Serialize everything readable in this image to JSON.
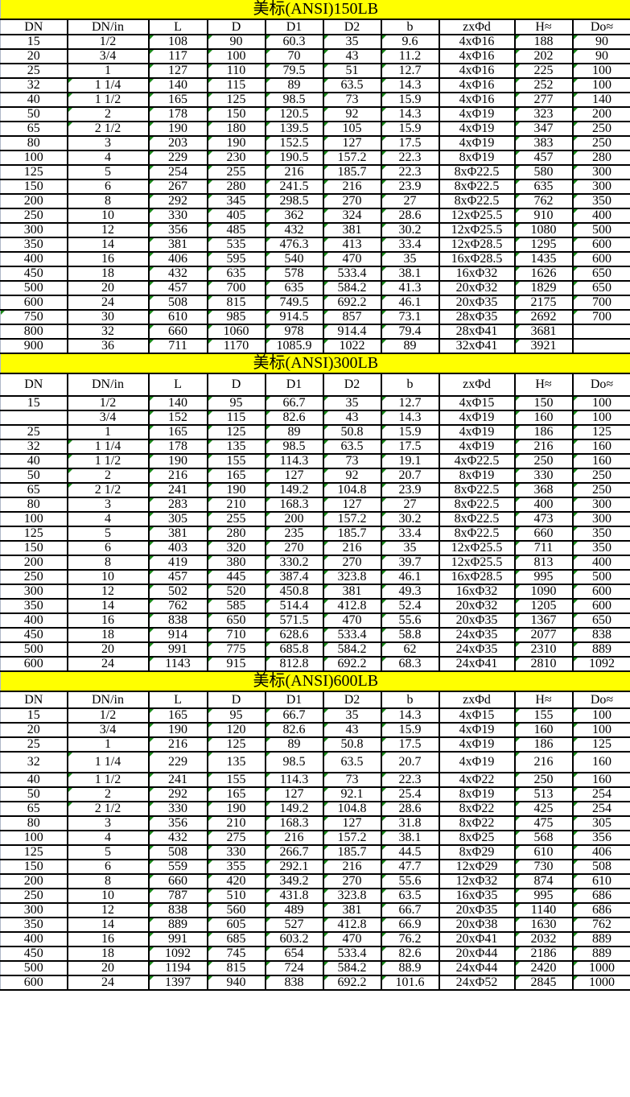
{
  "columns": [
    "DN",
    "DN/in",
    "L",
    "D",
    "D1",
    "D2",
    "b",
    "zxΦd",
    "H≈",
    "Do≈"
  ],
  "tables": [
    {
      "title": "美标(ANSI)150LB",
      "rows": [
        [
          "15",
          "1/2",
          "108",
          "90",
          "60.3",
          "35",
          "9.6",
          "4xΦ16",
          "188",
          "90"
        ],
        [
          "20",
          "3/4",
          "117",
          "100",
          "70",
          "43",
          "11.2",
          "4xΦ16",
          "202",
          "90"
        ],
        [
          "25",
          "1",
          "127",
          "110",
          "79.5",
          "51",
          "12.7",
          "4xΦ16",
          "225",
          "100"
        ],
        [
          "32",
          "1 1/4",
          "140",
          "115",
          "89",
          "63.5",
          "14.3",
          "4xΦ16",
          "252",
          "100"
        ],
        [
          "40",
          "1 1/2",
          "165",
          "125",
          "98.5",
          "73",
          "15.9",
          "4xΦ16",
          "277",
          "140"
        ],
        [
          "50",
          "2",
          "178",
          "150",
          "120.5",
          "92",
          "14.3",
          "4xΦ19",
          "323",
          "200"
        ],
        [
          "65",
          "2 1/2",
          "190",
          "180",
          "139.5",
          "105",
          "15.9",
          "4xΦ19",
          "347",
          "250"
        ],
        [
          "80",
          "3",
          "203",
          "190",
          "152.5",
          "127",
          "17.5",
          "4xΦ19",
          "383",
          "250"
        ],
        [
          "100",
          "4",
          "229",
          "230",
          "190.5",
          "157.2",
          "22.3",
          "8xΦ19",
          "457",
          "280"
        ],
        [
          "125",
          "5",
          "254",
          "255",
          "216",
          "185.7",
          "22.3",
          "8xΦ22.5",
          "580",
          "300"
        ],
        [
          "150",
          "6",
          "267",
          "280",
          "241.5",
          "216",
          "23.9",
          "8xΦ22.5",
          "635",
          "300"
        ],
        [
          "200",
          "8",
          "292",
          "345",
          "298.5",
          "270",
          "27",
          "8xΦ22.5",
          "762",
          "350"
        ],
        [
          "250",
          "10",
          "330",
          "405",
          "362",
          "324",
          "28.6",
          "12xΦ25.5",
          "910",
          "400"
        ],
        [
          "300",
          "12",
          "356",
          "485",
          "432",
          "381",
          "30.2",
          "12xΦ25.5",
          "1080",
          "500"
        ],
        [
          "350",
          "14",
          "381",
          "535",
          "476.3",
          "413",
          "33.4",
          "12xΦ28.5",
          "1295",
          "600"
        ],
        [
          "400",
          "16",
          "406",
          "595",
          "540",
          "470",
          "35",
          "16xΦ28.5",
          "1435",
          "600"
        ],
        [
          "450",
          "18",
          "432",
          "635",
          "578",
          "533.4",
          "38.1",
          "16xΦ32",
          "1626",
          "650"
        ],
        [
          "500",
          "20",
          "457",
          "700",
          "635",
          "584.2",
          "41.3",
          "20xΦ32",
          "1829",
          "650"
        ],
        [
          "600",
          "24",
          "508",
          "815",
          "749.5",
          "692.2",
          "46.1",
          "20xΦ35",
          "2175",
          "700"
        ],
        [
          "750",
          "30",
          "610",
          "985",
          "914.5",
          "857",
          "73.1",
          "28xΦ35",
          "2692",
          "700"
        ],
        [
          "800",
          "32",
          "660",
          "1060",
          "978",
          "914.4",
          "79.4",
          "28xΦ41",
          "3681",
          ""
        ],
        [
          "900",
          "36",
          "711",
          "1170",
          "1085.9",
          "1022",
          "89",
          "32xΦ41",
          "3921",
          ""
        ]
      ]
    },
    {
      "title": "美标(ANSI)300LB",
      "rows": [
        [
          "15",
          "1/2",
          "140",
          "95",
          "66.7",
          "35",
          "12.7",
          "4xΦ15",
          "150",
          "100"
        ],
        [
          "",
          "3/4",
          "152",
          "115",
          "82.6",
          "43",
          "14.3",
          "4xΦ19",
          "160",
          "100"
        ],
        [
          "25",
          "1",
          "165",
          "125",
          "89",
          "50.8",
          "15.9",
          "4xΦ19",
          "186",
          "125"
        ],
        [
          "32",
          "1 1/4",
          "178",
          "135",
          "98.5",
          "63.5",
          "17.5",
          "4xΦ19",
          "216",
          "160"
        ],
        [
          "40",
          "1 1/2",
          "190",
          "155",
          "114.3",
          "73",
          "19.1",
          "4xΦ22.5",
          "250",
          "160"
        ],
        [
          "50",
          "2",
          "216",
          "165",
          "127",
          "92",
          "20.7",
          "8xΦ19",
          "330",
          "250"
        ],
        [
          "65",
          "2 1/2",
          "241",
          "190",
          "149.2",
          "104.8",
          "23.9",
          "8xΦ22.5",
          "368",
          "250"
        ],
        [
          "80",
          "3",
          "283",
          "210",
          "168.3",
          "127",
          "27",
          "8xΦ22.5",
          "400",
          "300"
        ],
        [
          "100",
          "4",
          "305",
          "255",
          "200",
          "157.2",
          "30.2",
          "8xΦ22.5",
          "473",
          "300"
        ],
        [
          "125",
          "5",
          "381",
          "280",
          "235",
          "185.7",
          "33.4",
          "8xΦ22.5",
          "660",
          "350"
        ],
        [
          "150",
          "6",
          "403",
          "320",
          "270",
          "216",
          "35",
          "12xΦ25.5",
          "711",
          "350"
        ],
        [
          "200",
          "8",
          "419",
          "380",
          "330.2",
          "270",
          "39.7",
          "12xΦ25.5",
          "813",
          "400"
        ],
        [
          "250",
          "10",
          "457",
          "445",
          "387.4",
          "323.8",
          "46.1",
          "16xΦ28.5",
          "995",
          "500"
        ],
        [
          "300",
          "12",
          "502",
          "520",
          "450.8",
          "381",
          "49.3",
          "16xΦ32",
          "1090",
          "600"
        ],
        [
          "350",
          "14",
          "762",
          "585",
          "514.4",
          "412.8",
          "52.4",
          "20xΦ32",
          "1205",
          "600"
        ],
        [
          "400",
          "16",
          "838",
          "650",
          "571.5",
          "470",
          "55.6",
          "20xΦ35",
          "1367",
          "650"
        ],
        [
          "450",
          "18",
          "914",
          "710",
          "628.6",
          "533.4",
          "58.8",
          "24xΦ35",
          "2077",
          "838"
        ],
        [
          "500",
          "20",
          "991",
          "775",
          "685.8",
          "584.2",
          "62",
          "24xΦ35",
          "2310",
          "889"
        ],
        [
          "600",
          "24",
          "1143",
          "915",
          "812.8",
          "692.2",
          "68.3",
          "24xΦ41",
          "2810",
          "1092"
        ]
      ]
    },
    {
      "title": "美标(ANSI)600LB",
      "rows": [
        [
          "15",
          "1/2",
          "165",
          "95",
          "66.7",
          "35",
          "14.3",
          "4xΦ15",
          "155",
          "100"
        ],
        [
          "20",
          "3/4",
          "190",
          "120",
          "82.6",
          "43",
          "15.9",
          "4xΦ19",
          "160",
          "100"
        ],
        [
          "25",
          "1",
          "216",
          "125",
          "89",
          "50.8",
          "17.5",
          "4xΦ19",
          "186",
          "125"
        ],
        [
          "32",
          "1 1/4",
          "229",
          "135",
          "98.5",
          "63.5",
          "20.7",
          "4xΦ19",
          "216",
          "160"
        ],
        [
          "40",
          "1 1/2",
          "241",
          "155",
          "114.3",
          "73",
          "22.3",
          "4xΦ22",
          "250",
          "160"
        ],
        [
          "50",
          "2",
          "292",
          "165",
          "127",
          "92.1",
          "25.4",
          "8xΦ19",
          "513",
          "254"
        ],
        [
          "65",
          "2 1/2",
          "330",
          "190",
          "149.2",
          "104.8",
          "28.6",
          "8xΦ22",
          "425",
          "254"
        ],
        [
          "80",
          "3",
          "356",
          "210",
          "168.3",
          "127",
          "31.8",
          "8xΦ22",
          "475",
          "305"
        ],
        [
          "100",
          "4",
          "432",
          "275",
          "216",
          "157.2",
          "38.1",
          "8xΦ25",
          "568",
          "356"
        ],
        [
          "125",
          "5",
          "508",
          "330",
          "266.7",
          "185.7",
          "44.5",
          "8xΦ29",
          "610",
          "406"
        ],
        [
          "150",
          "6",
          "559",
          "355",
          "292.1",
          "216",
          "47.7",
          "12xΦ29",
          "730",
          "508"
        ],
        [
          "200",
          "8",
          "660",
          "420",
          "349.2",
          "270",
          "55.6",
          "12xΦ32",
          "874",
          "610"
        ],
        [
          "250",
          "10",
          "787",
          "510",
          "431.8",
          "323.8",
          "63.5",
          "16xΦ35",
          "995",
          "686"
        ],
        [
          "300",
          "12",
          "838",
          "560",
          "489",
          "381",
          "66.7",
          "20xΦ35",
          "1140",
          "686"
        ],
        [
          "350",
          "14",
          "889",
          "605",
          "527",
          "412.8",
          "66.9",
          "20xΦ38",
          "1630",
          "762"
        ],
        [
          "400",
          "16",
          "991",
          "685",
          "603.2",
          "470",
          "76.2",
          "20xΦ41",
          "2032",
          "889"
        ],
        [
          "450",
          "18",
          "1092",
          "745",
          "654",
          "533.4",
          "82.6",
          "20xΦ44",
          "2186",
          "889"
        ],
        [
          "500",
          "20",
          "1194",
          "815",
          "724",
          "584.2",
          "88.9",
          "24xΦ44",
          "2420",
          "1000"
        ],
        [
          "600",
          "24",
          "1397",
          "940",
          "838",
          "692.2",
          "101.6",
          "24xΦ52",
          "2845",
          "1000"
        ]
      ]
    }
  ],
  "colors": {
    "title_background": "#ffff00",
    "text_marker": "#1a8a1a",
    "grid": "#000000"
  }
}
